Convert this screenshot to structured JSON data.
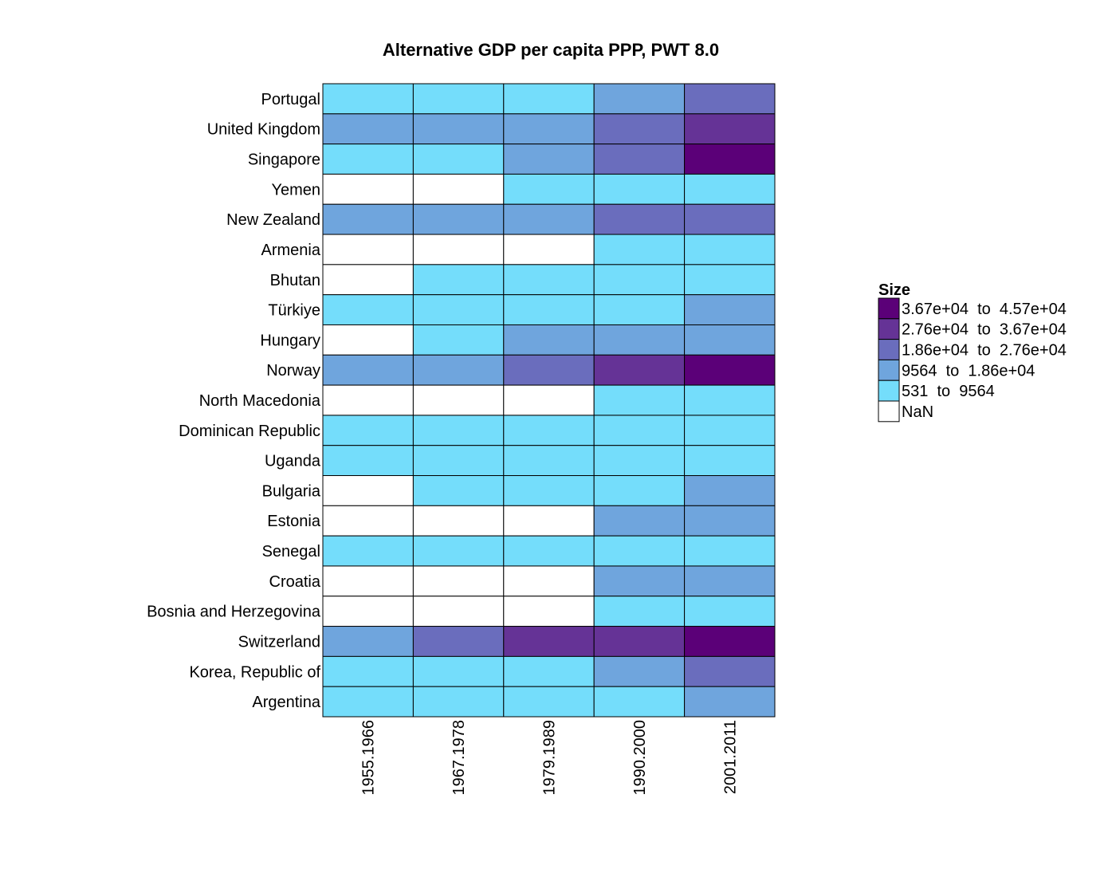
{
  "chart_data": {
    "type": "heatmap",
    "title": "Alternative GDP per capita PPP, PWT 8.0",
    "xlabel": "",
    "ylabel": "",
    "categories": [
      "1955.1966",
      "1967.1978",
      "1979.1989",
      "1990.2000",
      "2001.2011"
    ],
    "rows": [
      "Portugal",
      "United Kingdom",
      "Singapore",
      "Yemen",
      "New Zealand",
      "Armenia",
      "Bhutan",
      "Türkiye",
      "Hungary",
      "Norway",
      "North Macedonia",
      "Dominican Republic",
      "Uganda",
      "Bulgaria",
      "Estonia",
      "Senegal",
      "Croatia",
      "Bosnia and Herzegovina",
      "Switzerland",
      "Korea, Republic of",
      "Argentina"
    ],
    "cell_bins": [
      [
        1,
        1,
        1,
        2,
        3
      ],
      [
        2,
        2,
        2,
        3,
        4
      ],
      [
        1,
        1,
        2,
        3,
        5
      ],
      [
        0,
        0,
        1,
        1,
        1
      ],
      [
        2,
        2,
        2,
        3,
        3
      ],
      [
        0,
        0,
        0,
        1,
        1
      ],
      [
        0,
        1,
        1,
        1,
        1
      ],
      [
        1,
        1,
        1,
        1,
        2
      ],
      [
        0,
        1,
        2,
        2,
        2
      ],
      [
        2,
        2,
        3,
        4,
        5
      ],
      [
        0,
        0,
        0,
        1,
        1
      ],
      [
        1,
        1,
        1,
        1,
        1
      ],
      [
        1,
        1,
        1,
        1,
        1
      ],
      [
        0,
        1,
        1,
        1,
        2
      ],
      [
        0,
        0,
        0,
        2,
        2
      ],
      [
        1,
        1,
        1,
        1,
        1
      ],
      [
        0,
        0,
        0,
        2,
        2
      ],
      [
        0,
        0,
        0,
        1,
        1
      ],
      [
        2,
        3,
        4,
        4,
        5
      ],
      [
        1,
        1,
        1,
        2,
        3
      ],
      [
        1,
        1,
        1,
        1,
        2
      ]
    ],
    "legend": {
      "title": "Size",
      "position": "right",
      "entries": [
        {
          "label": "3.67e+04  to  4.57e+04",
          "bin": 5,
          "color": "#5b0078"
        },
        {
          "label": "2.76e+04  to  3.67e+04",
          "bin": 4,
          "color": "#653396"
        },
        {
          "label": "1.86e+04  to  2.76e+04",
          "bin": 3,
          "color": "#6a6dbd"
        },
        {
          "label": "9564  to  1.86e+04",
          "bin": 2,
          "color": "#6fa5dd"
        },
        {
          "label": "531  to  9564",
          "bin": 1,
          "color": "#74ddfb"
        },
        {
          "label": "NaN",
          "bin": 0,
          "color": "#ffffff"
        }
      ]
    },
    "grid": false
  }
}
